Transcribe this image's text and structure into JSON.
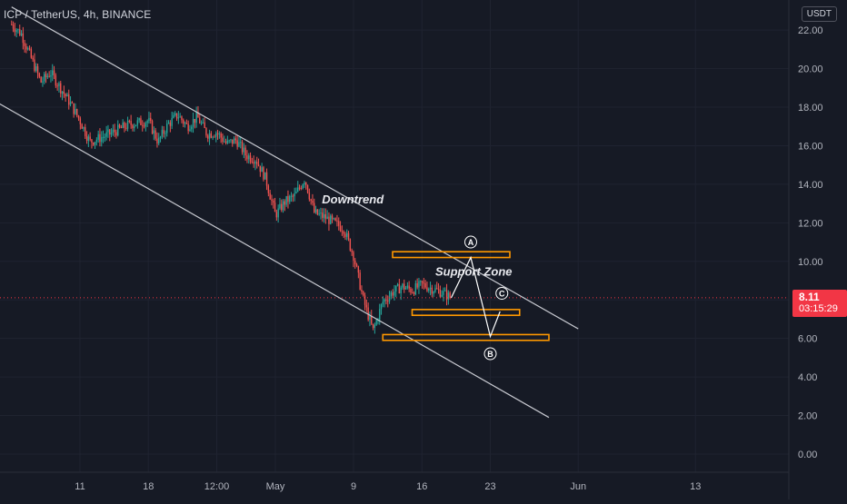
{
  "header": {
    "symbol_label": "ICP / TetherUS, 4h, BINANCE",
    "currency_badge": "USDT"
  },
  "price_badge": {
    "price": "8.11",
    "countdown": "03:15:29",
    "color": "#f23645"
  },
  "colors": {
    "background": "#161a25",
    "up_candle": "#26a69a",
    "down_candle": "#ef5350",
    "zone_border": "#ff9800",
    "trend_line": "#c7c9d0",
    "text": "#d1d4dc",
    "current_price_line": "#f23645"
  },
  "chart_data": {
    "type": "candlestick",
    "symbol": "ICP / TetherUS",
    "interval": "4h",
    "exchange": "BINANCE",
    "y_axis": {
      "ticks": [
        "22.00",
        "20.00",
        "18.00",
        "16.00",
        "14.00",
        "12.00",
        "10.00",
        "8.00",
        "6.00",
        "4.00",
        "2.00",
        "0.00"
      ],
      "range": [
        -1,
        23
      ],
      "unit": "USDT"
    },
    "x_axis": {
      "ticks": [
        "11",
        "18",
        "12:00",
        "May",
        "9",
        "16",
        "23",
        "Jun",
        "13"
      ]
    },
    "current_price": 8.11,
    "price_path": [
      {
        "x": "Apr 4",
        "y": 22.3
      },
      {
        "x": "Apr 5",
        "y": 21.8
      },
      {
        "x": "Apr 7",
        "y": 19.3
      },
      {
        "x": "Apr 8",
        "y": 19.8
      },
      {
        "x": "Apr 10",
        "y": 18.2
      },
      {
        "x": "Apr 11",
        "y": 17.3
      },
      {
        "x": "Apr 12",
        "y": 16.2
      },
      {
        "x": "Apr 14",
        "y": 16.6
      },
      {
        "x": "Apr 16",
        "y": 17.1
      },
      {
        "x": "Apr 18",
        "y": 17.3
      },
      {
        "x": "Apr 19",
        "y": 16.2
      },
      {
        "x": "Apr 20",
        "y": 17.1
      },
      {
        "x": "Apr 21",
        "y": 17.6
      },
      {
        "x": "Apr 22",
        "y": 17.0
      },
      {
        "x": "Apr 23",
        "y": 17.5
      },
      {
        "x": "Apr 24",
        "y": 16.6
      },
      {
        "x": "Apr 25",
        "y": 16.7
      },
      {
        "x": "Apr 26",
        "y": 16.1
      },
      {
        "x": "Apr 27",
        "y": 16.3
      },
      {
        "x": "Apr 28",
        "y": 15.5
      },
      {
        "x": "Apr 29",
        "y": 15.3
      },
      {
        "x": "Apr 30",
        "y": 14.3
      },
      {
        "x": "May 1",
        "y": 12.4
      },
      {
        "x": "May 2",
        "y": 13.1
      },
      {
        "x": "May 3",
        "y": 13.4
      },
      {
        "x": "May 4",
        "y": 14.3
      },
      {
        "x": "May 5",
        "y": 12.5
      },
      {
        "x": "May 6",
        "y": 12.3
      },
      {
        "x": "May 7",
        "y": 12.0
      },
      {
        "x": "May 8",
        "y": 11.7
      },
      {
        "x": "May 9",
        "y": 10.3
      },
      {
        "x": "May 10",
        "y": 8.0
      },
      {
        "x": "May 11",
        "y": 6.4
      },
      {
        "x": "May 12",
        "y": 7.9
      },
      {
        "x": "May 13",
        "y": 8.4
      },
      {
        "x": "May 14",
        "y": 8.7
      },
      {
        "x": "May 15",
        "y": 8.5
      },
      {
        "x": "May 16",
        "y": 8.8
      },
      {
        "x": "May 17",
        "y": 8.6
      },
      {
        "x": "May 18",
        "y": 8.4
      },
      {
        "x": "May 19",
        "y": 8.11
      }
    ],
    "channel_lines": [
      {
        "name": "Downtrend",
        "from": {
          "x": "Apr 4",
          "y": 23.2
        },
        "to": {
          "x": "Jun 1",
          "y": 6.5
        }
      },
      {
        "name": "Support Zone",
        "from": {
          "x": "Apr 2",
          "y": 18.4
        },
        "to": {
          "x": "May 29",
          "y": 1.9
        }
      }
    ],
    "zones": [
      {
        "top": 10.5,
        "bottom": 10.2,
        "from": "May 13",
        "to": "May 25"
      },
      {
        "top": 7.5,
        "bottom": 7.2,
        "from": "May 15",
        "to": "May 26"
      },
      {
        "top": 6.2,
        "bottom": 5.9,
        "from": "May 12",
        "to": "May 29"
      }
    ],
    "projection": [
      {
        "x": "May 19",
        "y": 8.11
      },
      {
        "x": "May 21",
        "y": 10.2,
        "label": "A"
      },
      {
        "x": "May 23",
        "y": 6.1,
        "label": "B"
      },
      {
        "x": "May 24",
        "y": 7.4,
        "label": "C"
      }
    ],
    "annotations": [
      "Downtrend",
      "Support Zone"
    ],
    "grid": true,
    "legend": "none"
  }
}
